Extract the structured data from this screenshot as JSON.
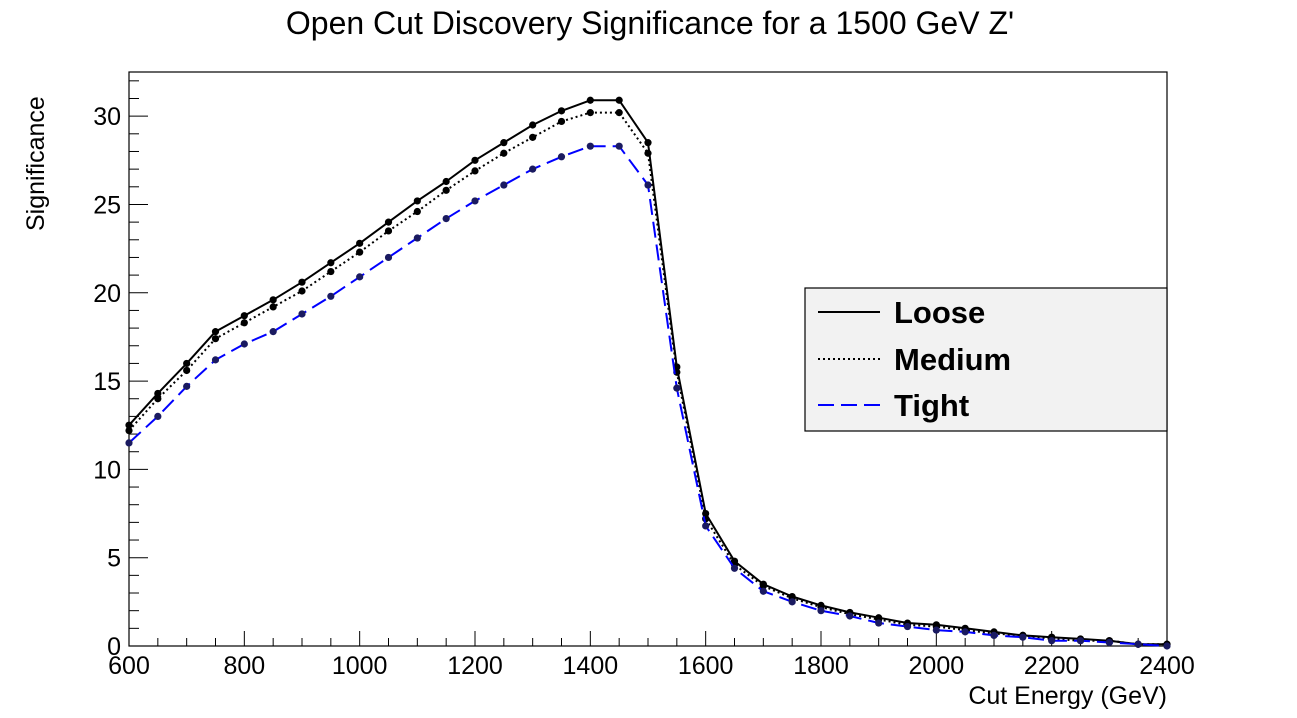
{
  "chart_data": {
    "type": "line",
    "title": "Open Cut Discovery Significance for a 1500 GeV Z'",
    "xlabel": "Cut Energy (GeV)",
    "ylabel": "Significance",
    "xlim": [
      600,
      2400
    ],
    "ylim": [
      0,
      32.5
    ],
    "xticks": [
      600,
      800,
      1000,
      1200,
      1400,
      1600,
      1800,
      2000,
      2200,
      2400
    ],
    "yticks": [
      0,
      5,
      10,
      15,
      20,
      25,
      30
    ],
    "grid": false,
    "legend_position": "right",
    "x": [
      600,
      650,
      700,
      750,
      800,
      850,
      900,
      950,
      1000,
      1050,
      1100,
      1150,
      1200,
      1250,
      1300,
      1350,
      1400,
      1450,
      1500,
      1550,
      1600,
      1650,
      1700,
      1750,
      1800,
      1850,
      1900,
      1950,
      2000,
      2050,
      2100,
      2150,
      2200,
      2250,
      2300,
      2350,
      2400
    ],
    "series": [
      {
        "name": "Loose",
        "color": "#000000",
        "dash": "solid",
        "values": [
          12.5,
          14.3,
          16.0,
          17.8,
          18.7,
          19.6,
          20.6,
          21.7,
          22.8,
          24.0,
          25.2,
          26.3,
          27.5,
          28.5,
          29.5,
          30.3,
          30.9,
          30.9,
          28.5,
          15.8,
          7.5,
          4.8,
          3.5,
          2.8,
          2.3,
          1.9,
          1.6,
          1.3,
          1.2,
          1.0,
          0.8,
          0.6,
          0.5,
          0.4,
          0.3,
          0.1,
          0.1
        ]
      },
      {
        "name": "Medium",
        "color": "#000000",
        "dash": "dotted",
        "values": [
          12.2,
          14.0,
          15.6,
          17.4,
          18.3,
          19.2,
          20.1,
          21.2,
          22.3,
          23.5,
          24.6,
          25.8,
          26.9,
          27.9,
          28.8,
          29.7,
          30.2,
          30.2,
          27.9,
          15.5,
          7.2,
          4.6,
          3.4,
          2.7,
          2.2,
          1.8,
          1.5,
          1.2,
          1.1,
          0.9,
          0.7,
          0.6,
          0.4,
          0.3,
          0.3,
          0.1,
          0.1
        ]
      },
      {
        "name": "Tight",
        "color": "#0000ff",
        "dash": "dashed",
        "values": [
          11.5,
          13.0,
          14.7,
          16.2,
          17.1,
          17.8,
          18.8,
          19.8,
          20.9,
          22.0,
          23.1,
          24.2,
          25.2,
          26.1,
          27.0,
          27.7,
          28.3,
          28.3,
          26.1,
          14.6,
          6.8,
          4.4,
          3.1,
          2.5,
          2.0,
          1.7,
          1.3,
          1.1,
          0.9,
          0.8,
          0.6,
          0.5,
          0.3,
          0.3,
          0.2,
          0.1,
          0.0
        ]
      }
    ]
  }
}
